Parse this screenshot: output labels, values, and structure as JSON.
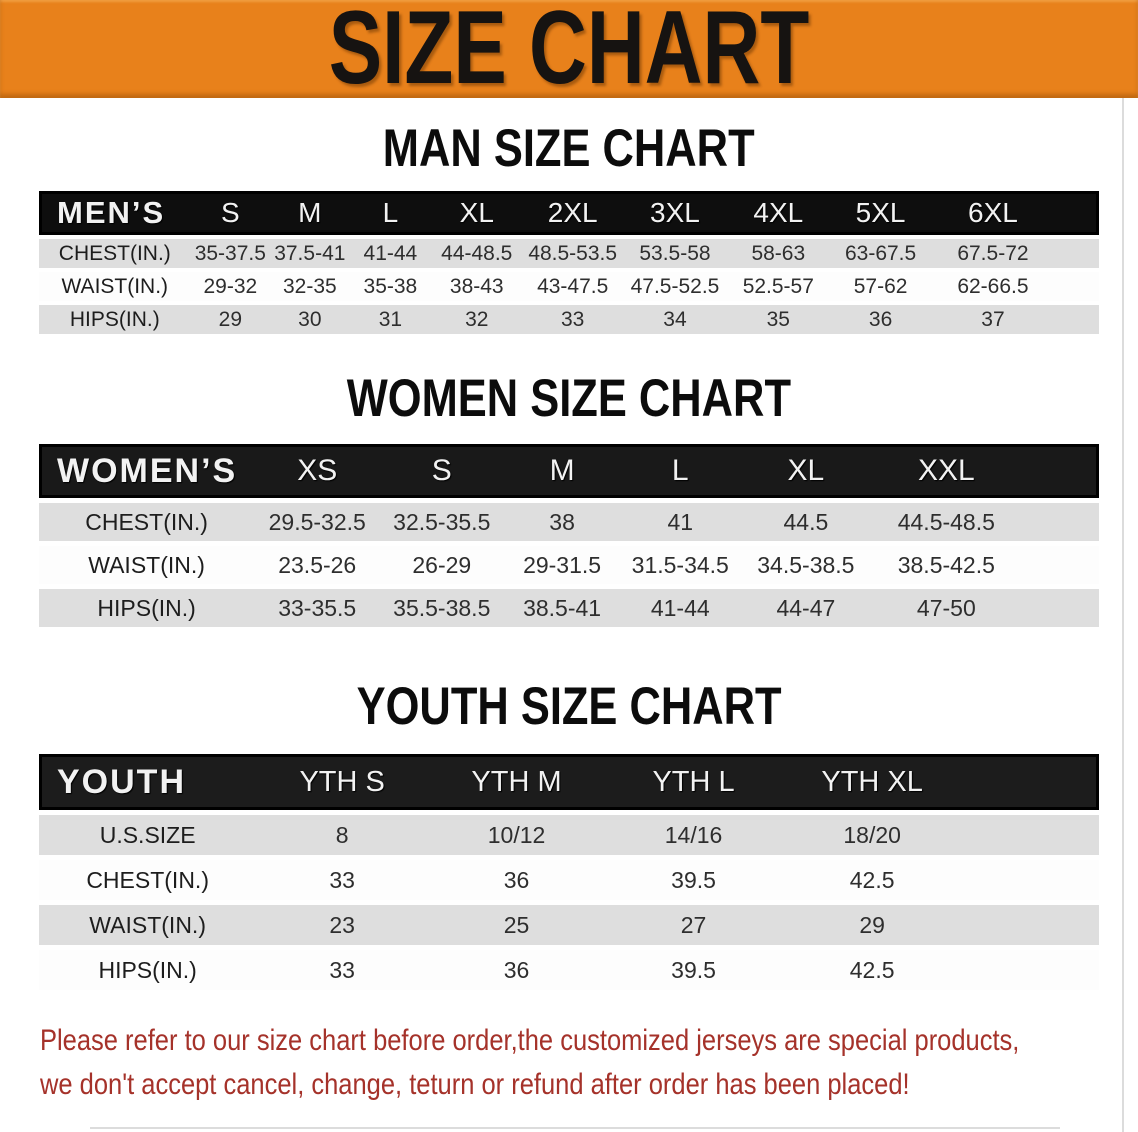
{
  "banner": {
    "title": "SIZE CHART",
    "background_color": "#E8811B"
  },
  "sections": [
    {
      "id": "men",
      "title": "MAN SIZE CHART",
      "corner_label": "MEN’S",
      "size_headers": [
        "S",
        "M",
        "L",
        "XL",
        "2XL",
        "3XL",
        "4XL",
        "5XL",
        "6XL"
      ],
      "rows": [
        {
          "label": "CHEST(IN.)",
          "values": [
            "35-37.5",
            "37.5-41",
            "41-44",
            "44-48.5",
            "48.5-53.5",
            "53.5-58",
            "58-63",
            "63-67.5",
            "67.5-72"
          ]
        },
        {
          "label": "WAIST(IN.)",
          "values": [
            "29-32",
            "32-35",
            "35-38",
            "38-43",
            "43-47.5",
            "47.5-52.5",
            "52.5-57",
            "57-62",
            "62-66.5"
          ]
        },
        {
          "label": "HIPS(IN.)",
          "values": [
            "29",
            "30",
            "31",
            "32",
            "33",
            "34",
            "35",
            "36",
            "37"
          ]
        }
      ]
    },
    {
      "id": "women",
      "title": "WOMEN SIZE CHART",
      "corner_label": "WOMEN’S",
      "size_headers": [
        "XS",
        "S",
        "M",
        "L",
        "XL",
        "XXL"
      ],
      "rows": [
        {
          "label": "CHEST(IN.)",
          "values": [
            "29.5-32.5",
            "32.5-35.5",
            "38",
            "41",
            "44.5",
            "44.5-48.5"
          ]
        },
        {
          "label": "WAIST(IN.)",
          "values": [
            "23.5-26",
            "26-29",
            "29-31.5",
            "31.5-34.5",
            "34.5-38.5",
            "38.5-42.5"
          ]
        },
        {
          "label": "HIPS(IN.)",
          "values": [
            "33-35.5",
            "35.5-38.5",
            "38.5-41",
            "41-44",
            "44-47",
            "47-50"
          ]
        }
      ]
    },
    {
      "id": "youth",
      "title": "YOUTH SIZE CHART",
      "corner_label": "YOUTH",
      "size_headers": [
        "YTH S",
        "YTH M",
        "YTH L",
        "YTH XL"
      ],
      "rows": [
        {
          "label": "U.S.SIZE",
          "values": [
            "8",
            "10/12",
            "14/16",
            "18/20"
          ]
        },
        {
          "label": "CHEST(IN.)",
          "values": [
            "33",
            "36",
            "39.5",
            "42.5"
          ]
        },
        {
          "label": "WAIST(IN.)",
          "values": [
            "23",
            "25",
            "27",
            "29"
          ]
        },
        {
          "label": "HIPS(IN.)",
          "values": [
            "33",
            "36",
            "39.5",
            "42.5"
          ]
        }
      ]
    }
  ],
  "disclaimer": {
    "line1": "Please refer to our size chart before order,the customized jerseys are special products,",
    "line2": "we don't accept cancel, change, teturn or refund after order has been placed!",
    "color": "#A5322A"
  }
}
